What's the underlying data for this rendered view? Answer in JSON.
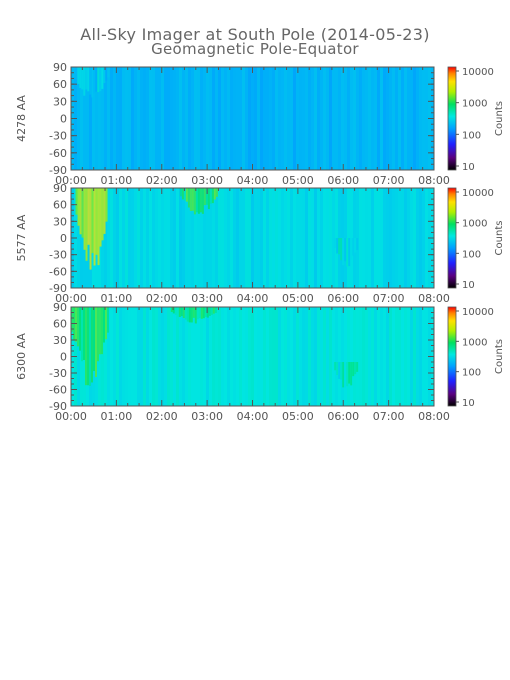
{
  "title": "All-Sky Imager at South Pole (2014-05-23)",
  "subtitle": "Geomagnetic Pole-Equator",
  "chart_data": [
    {
      "type": "heatmap",
      "ylabel": "4278 AA",
      "x_ticks": [
        "00:00",
        "01:00",
        "02:00",
        "03:00",
        "04:00",
        "05:00",
        "06:00",
        "07:00",
        "08:00"
      ],
      "y_ticks": [
        90,
        60,
        30,
        0,
        -30,
        -60,
        -90
      ],
      "xlim": [
        0,
        8
      ],
      "ylim": [
        -90,
        90
      ],
      "colorbar": {
        "label": "Counts",
        "scale": "log",
        "range": [
          10,
          10000
        ],
        "ticks": [
          "10000",
          "1000",
          "100",
          "10"
        ]
      },
      "background_level": 200,
      "features": [
        {
          "t_start": 0.05,
          "t_end": 0.8,
          "lat_min": 30,
          "lat_max": 90,
          "level": 350
        }
      ]
    },
    {
      "type": "heatmap",
      "ylabel": "5577 AA",
      "x_ticks": [
        "00:00",
        "01:00",
        "02:00",
        "03:00",
        "04:00",
        "05:00",
        "06:00",
        "07:00",
        "08:00"
      ],
      "y_ticks": [
        90,
        60,
        30,
        0,
        -30,
        -60,
        -90
      ],
      "xlim": [
        0,
        8
      ],
      "ylim": [
        -90,
        90
      ],
      "colorbar": {
        "label": "Counts",
        "scale": "log",
        "range": [
          10,
          10000
        ],
        "ticks": [
          "10000",
          "1000",
          "100",
          "10"
        ]
      },
      "background_level": 300,
      "features": [
        {
          "t_start": 0.1,
          "t_end": 0.8,
          "lat_min": -70,
          "lat_max": 90,
          "level": 3000
        },
        {
          "t_start": 2.4,
          "t_end": 3.2,
          "lat_min": 40,
          "lat_max": 90,
          "level": 1200
        },
        {
          "t_start": 5.8,
          "t_end": 6.3,
          "lat_min": -60,
          "lat_max": 0,
          "level": 500
        }
      ]
    },
    {
      "type": "heatmap",
      "ylabel": "6300 AA",
      "x_ticks": [
        "00:00",
        "01:00",
        "02:00",
        "03:00",
        "04:00",
        "05:00",
        "06:00",
        "07:00",
        "08:00"
      ],
      "y_ticks": [
        90,
        60,
        30,
        0,
        -30,
        -60,
        -90
      ],
      "xlim": [
        0,
        8
      ],
      "ylim": [
        -90,
        90
      ],
      "colorbar": {
        "label": "Counts",
        "scale": "log",
        "range": [
          10,
          10000
        ],
        "ticks": [
          "10000",
          "1000",
          "100",
          "10"
        ]
      },
      "background_level": 350,
      "features": [
        {
          "t_start": 0.0,
          "t_end": 0.8,
          "lat_min": -60,
          "lat_max": 90,
          "level": 1200
        },
        {
          "t_start": 2.2,
          "t_end": 3.2,
          "lat_min": 60,
          "lat_max": 90,
          "level": 900
        },
        {
          "t_start": 5.8,
          "t_end": 6.3,
          "lat_min": -60,
          "lat_max": -10,
          "level": 600
        }
      ]
    }
  ]
}
